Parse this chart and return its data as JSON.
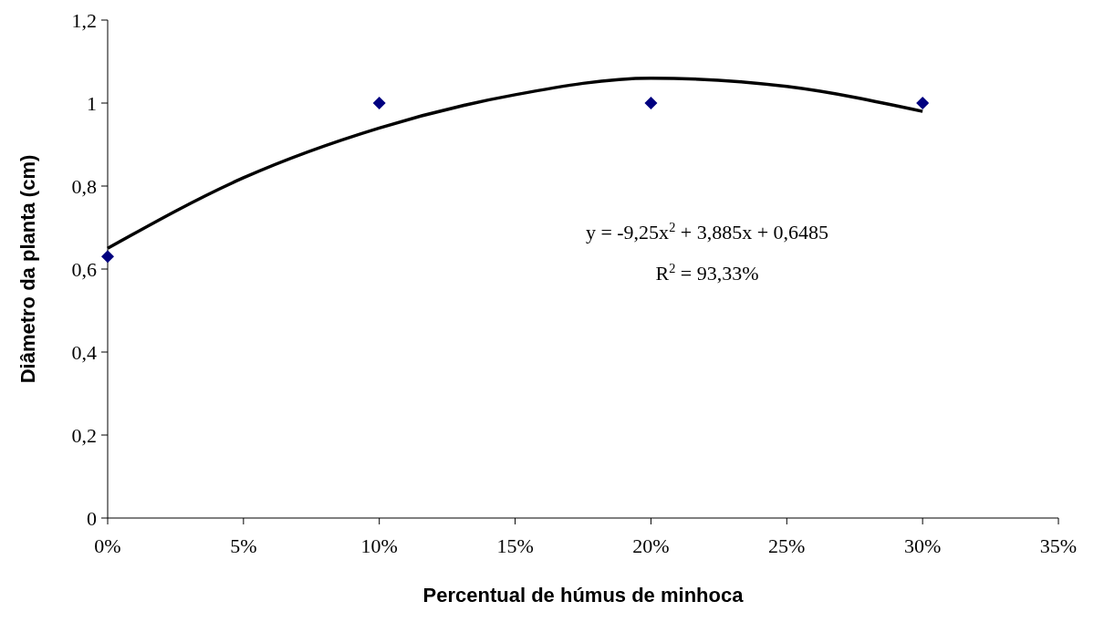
{
  "chart_data": {
    "type": "scatter",
    "xlabel": "Percentual de húmus de minhoca",
    "ylabel": "Diâmetro da planta (cm)",
    "xlim": [
      0,
      0.35
    ],
    "xticks": [
      {
        "value": 0,
        "label": "0%"
      },
      {
        "value": 0.05,
        "label": "5%"
      },
      {
        "value": 0.1,
        "label": "10%"
      },
      {
        "value": 0.15,
        "label": "15%"
      },
      {
        "value": 0.2,
        "label": "20%"
      },
      {
        "value": 0.25,
        "label": "25%"
      },
      {
        "value": 0.3,
        "label": "30%"
      },
      {
        "value": 0.35,
        "label": "35%"
      }
    ],
    "ylim": [
      0,
      1.2
    ],
    "yticks": [
      {
        "value": 0,
        "label": "0"
      },
      {
        "value": 0.2,
        "label": "0,2"
      },
      {
        "value": 0.4,
        "label": "0,4"
      },
      {
        "value": 0.6,
        "label": "0,6"
      },
      {
        "value": 0.8,
        "label": "0,8"
      },
      {
        "value": 1,
        "label": "1"
      },
      {
        "value": 1.2,
        "label": "1,2"
      }
    ],
    "grid": false,
    "series": [
      {
        "marker": "diamond",
        "color": "#000080",
        "x": [
          0,
          0.1,
          0.2,
          0.3
        ],
        "values": [
          0.63,
          1,
          1,
          1
        ]
      },
      {
        "type": "line",
        "marker": "none",
        "line_style": "solid",
        "color": "#000000",
        "x": [
          0,
          0.05,
          0.1,
          0.15,
          0.2,
          0.25,
          0.3
        ],
        "values": [
          0.65,
          0.82,
          0.94,
          1.02,
          1.06,
          1.04,
          0.98
        ]
      }
    ],
    "annotations": [
      "y = -9,25x$^{2}$ + 3,885x + 0,6485",
      "R$^{2}$ = 93,33%"
    ]
  }
}
